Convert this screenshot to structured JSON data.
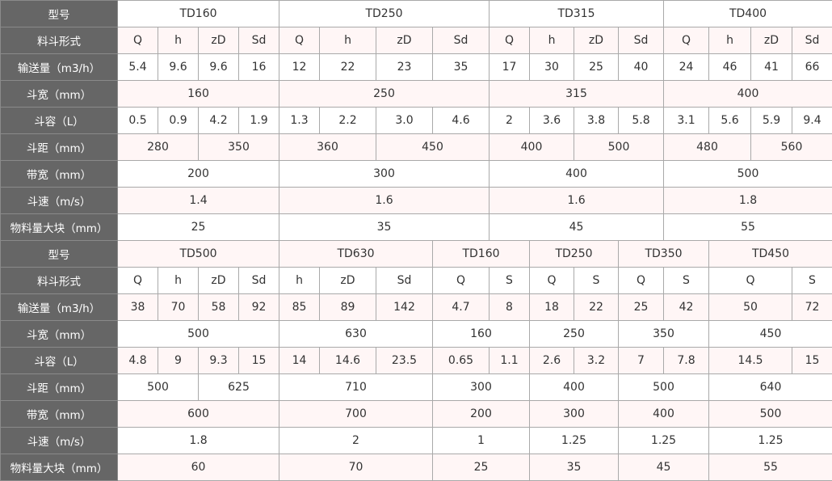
{
  "sections": [
    {
      "rows": [
        {
          "label": "型号",
          "cells": [
            "TD160",
            "TD250",
            "TD315",
            "TD400"
          ]
        },
        {
          "label": "料斗形式",
          "cells": [
            "Q",
            "h",
            "zD",
            "Sd",
            "Q",
            "h",
            "zD",
            "Sd",
            "Q",
            "h",
            "zD",
            "Sd",
            "Q",
            "h",
            "zD",
            "Sd"
          ]
        },
        {
          "label": "输送量（m3/h）",
          "cells": [
            "5.4",
            "9.6",
            "9.6",
            "16",
            "12",
            "22",
            "23",
            "35",
            "17",
            "30",
            "25",
            "40",
            "24",
            "46",
            "41",
            "66"
          ]
        },
        {
          "label": "斗宽（mm）",
          "cells": [
            "160",
            "250",
            "315",
            "400"
          ]
        },
        {
          "label": "斗容（L）",
          "cells": [
            "0.5",
            "0.9",
            "4.2",
            "1.9",
            "1.3",
            "2.2",
            "3.0",
            "4.6",
            "2",
            "3.6",
            "3.8",
            "5.8",
            "3.1",
            "5.6",
            "5.9",
            "9.4"
          ]
        },
        {
          "label": "斗距（mm）",
          "cells": [
            "280",
            "350",
            "360",
            "450",
            "400",
            "500",
            "480",
            "560"
          ]
        },
        {
          "label": "带宽（mm）",
          "cells": [
            "200",
            "300",
            "400",
            "500"
          ]
        },
        {
          "label": "斗速（m/s）",
          "cells": [
            "1.4",
            "1.6",
            "1.6",
            "1.8"
          ]
        },
        {
          "label": "物料量大块（mm）",
          "cells": [
            "25",
            "35",
            "45",
            "55"
          ]
        }
      ]
    },
    {
      "rows": [
        {
          "label": "型号",
          "cells": [
            "TD500",
            "TD630",
            "TD160",
            "TD250",
            "TD350",
            "TD450"
          ]
        },
        {
          "label": "料斗形式",
          "cells": [
            "Q",
            "h",
            "zD",
            "Sd",
            "h",
            "zD",
            "Sd",
            "Q",
            "S",
            "Q",
            "S",
            "Q",
            "S",
            "Q",
            "S"
          ]
        },
        {
          "label": "输送量（m3/h）",
          "cells": [
            "38",
            "70",
            "58",
            "92",
            "85",
            "89",
            "142",
            "4.7",
            "8",
            "18",
            "22",
            "25",
            "42",
            "50",
            "72"
          ]
        },
        {
          "label": "斗宽（mm）",
          "cells": [
            "500",
            "630",
            "160",
            "250",
            "350",
            "450"
          ]
        },
        {
          "label": "斗容（L）",
          "cells": [
            "4.8",
            "9",
            "9.3",
            "15",
            "14",
            "14.6",
            "23.5",
            "0.65",
            "1.1",
            "2.6",
            "3.2",
            "7",
            "7.8",
            "14.5",
            "15"
          ]
        },
        {
          "label": "斗距（mm）",
          "cells": [
            "500",
            "625",
            "710",
            "300",
            "400",
            "500",
            "640"
          ]
        },
        {
          "label": "带宽（mm）",
          "cells": [
            "600",
            "700",
            "200",
            "300",
            "400",
            "500"
          ]
        },
        {
          "label": "斗速（m/s）",
          "cells": [
            "1.8",
            "2",
            "1",
            "1.25",
            "1.25",
            "1.25"
          ]
        },
        {
          "label": "物料量大块（mm）",
          "cells": [
            "60",
            "70",
            "25",
            "35",
            "45",
            "55"
          ]
        }
      ]
    }
  ],
  "colors": {
    "header_bg": "#666666",
    "stripe_bg": "#fff6f6",
    "border": "#a9a9a9"
  }
}
